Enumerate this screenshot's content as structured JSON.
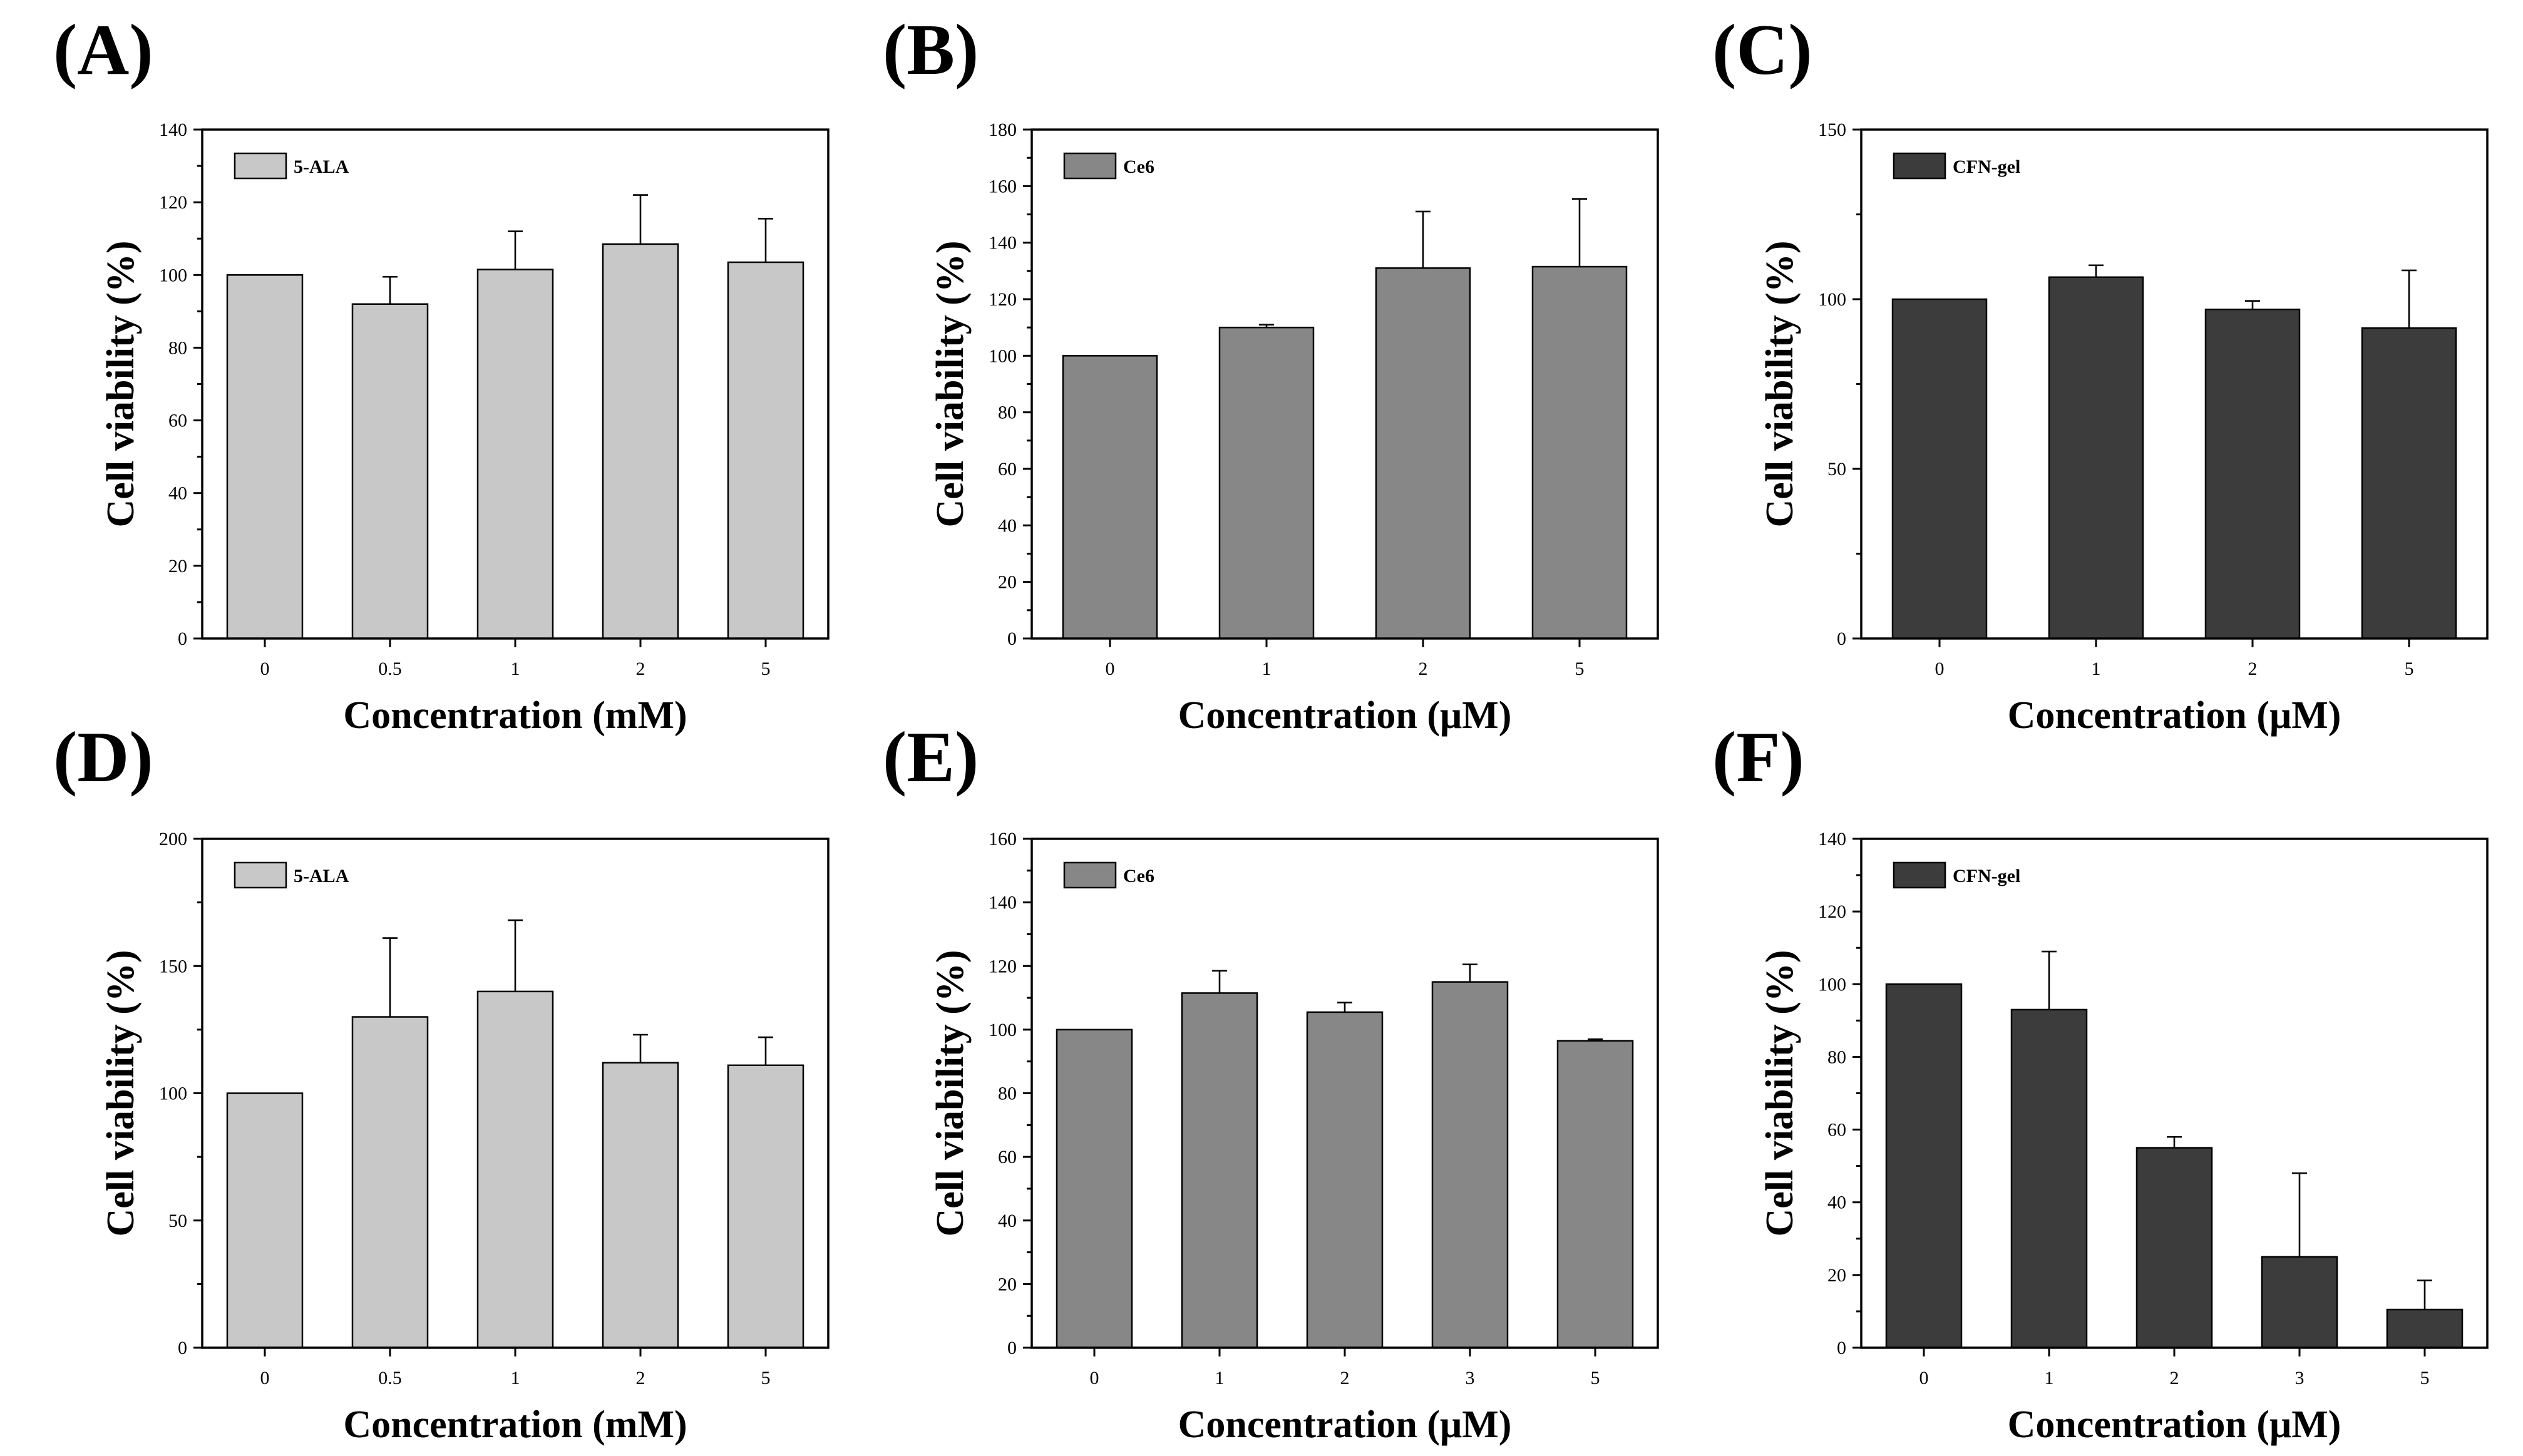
{
  "figure": {
    "panel_labels": [
      "(A)",
      "(B)",
      "(C)",
      "(D)",
      "(E)",
      "(F)"
    ]
  },
  "chart_data": [
    {
      "panel": "(A)",
      "type": "bar",
      "categories": [
        "0",
        "0.5",
        "1",
        "2",
        "5"
      ],
      "series": [
        {
          "name": "5-ALA",
          "values": [
            100,
            92,
            101.5,
            108.5,
            103.5
          ],
          "errors": [
            0,
            7.5,
            10.5,
            13.5,
            12
          ]
        }
      ],
      "xlabel": "Concentration (mM)",
      "ylabel": "Cell viability (%)",
      "ylim": [
        0,
        140
      ],
      "yticks": [
        0,
        20,
        40,
        60,
        80,
        100,
        120,
        140
      ],
      "color": "#c8c8c8",
      "legend": "top-left"
    },
    {
      "panel": "(B)",
      "type": "bar",
      "categories": [
        "0",
        "1",
        "2",
        "5"
      ],
      "series": [
        {
          "name": "Ce6",
          "values": [
            100,
            110,
            131,
            131.5
          ],
          "errors": [
            0,
            1,
            20,
            24
          ]
        }
      ],
      "xlabel": "Concentration (μM)",
      "ylabel": "Cell viability (%)",
      "ylim": [
        0,
        180
      ],
      "yticks": [
        0,
        20,
        40,
        60,
        80,
        100,
        120,
        140,
        160,
        180
      ],
      "color": "#878787",
      "legend": "top-left"
    },
    {
      "panel": "(C)",
      "type": "bar",
      "categories": [
        "0",
        "1",
        "2",
        "5"
      ],
      "series": [
        {
          "name": "CFN-gel",
          "values": [
            100,
            106.5,
            97,
            91.5
          ],
          "errors": [
            0,
            3.5,
            2.5,
            17
          ]
        }
      ],
      "xlabel": "Concentration (μM)",
      "ylabel": "Cell viability (%)",
      "ylim": [
        0,
        150
      ],
      "yticks": [
        0,
        50,
        100,
        150
      ],
      "color": "#3c3c3c",
      "legend": "top-left"
    },
    {
      "panel": "(D)",
      "type": "bar",
      "categories": [
        "0",
        "0.5",
        "1",
        "2",
        "5"
      ],
      "series": [
        {
          "name": "5-ALA",
          "values": [
            100,
            130,
            140,
            112,
            111
          ],
          "errors": [
            0,
            31,
            28,
            11,
            11
          ]
        }
      ],
      "xlabel": "Concentration (mM)",
      "ylabel": "Cell viability (%)",
      "ylim": [
        0,
        200
      ],
      "yticks": [
        0,
        50,
        100,
        150,
        200
      ],
      "color": "#c8c8c8",
      "legend": "top-left"
    },
    {
      "panel": "(E)",
      "type": "bar",
      "categories": [
        "0",
        "1",
        "2",
        "3",
        "5"
      ],
      "series": [
        {
          "name": "Ce6",
          "values": [
            100,
            111.5,
            105.5,
            115,
            96.5
          ],
          "errors": [
            0,
            7,
            3,
            5.5,
            0.5
          ]
        }
      ],
      "xlabel": "Concentration (μM)",
      "ylabel": "Cell viability (%)",
      "ylim": [
        0,
        160
      ],
      "yticks": [
        0,
        20,
        40,
        60,
        80,
        100,
        120,
        140,
        160
      ],
      "color": "#878787",
      "legend": "top-left"
    },
    {
      "panel": "(F)",
      "type": "bar",
      "categories": [
        "0",
        "1",
        "2",
        "3",
        "5"
      ],
      "series": [
        {
          "name": "CFN-gel",
          "values": [
            100,
            93,
            55,
            25,
            10.5
          ],
          "errors": [
            0,
            16,
            3,
            23,
            8
          ]
        }
      ],
      "xlabel": "Concentration (μM)",
      "ylabel": "Cell viability (%)",
      "ylim": [
        0,
        140
      ],
      "yticks": [
        0,
        20,
        40,
        60,
        80,
        100,
        120,
        140
      ],
      "color": "#3c3c3c",
      "legend": "top-left"
    }
  ]
}
